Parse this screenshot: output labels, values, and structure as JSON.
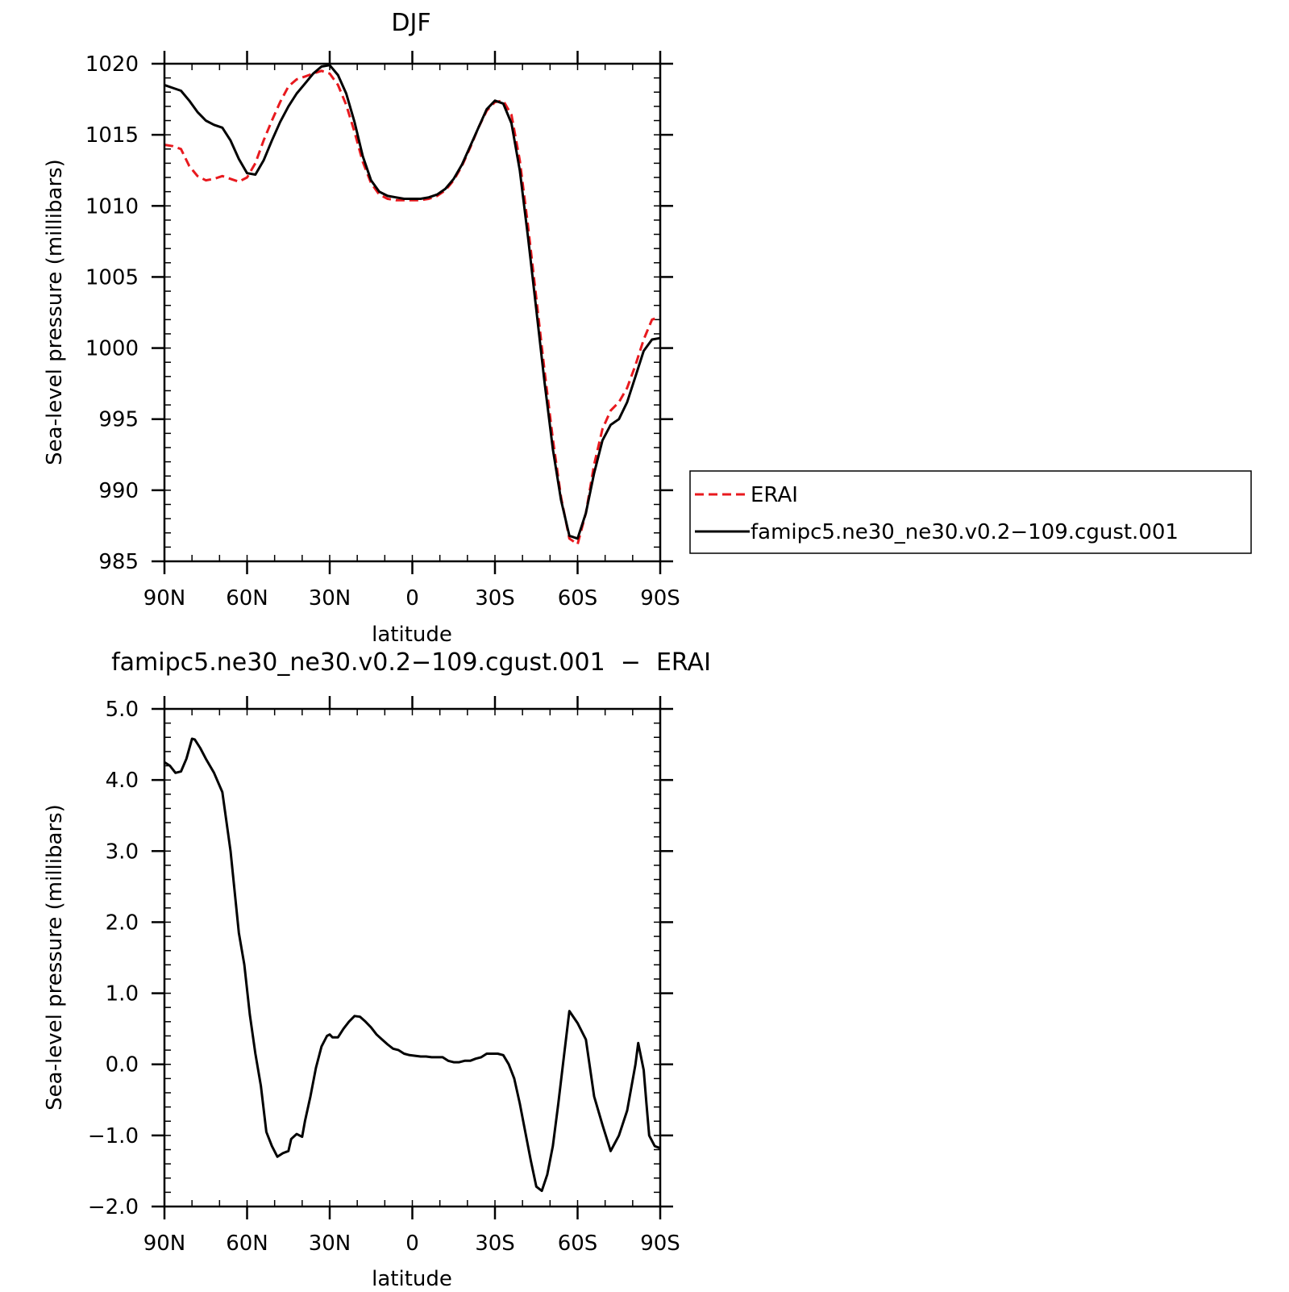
{
  "chart_data": [
    {
      "type": "line",
      "title": "DJF",
      "xlabel": "latitude",
      "ylabel": "Sea-level pressure (millibars)",
      "xlim": [
        90,
        -90
      ],
      "ylim": [
        985,
        1020
      ],
      "xticks": [
        {
          "value": 90,
          "label": "90N"
        },
        {
          "value": 60,
          "label": "60N"
        },
        {
          "value": 30,
          "label": "30N"
        },
        {
          "value": 0,
          "label": "0"
        },
        {
          "value": -30,
          "label": "30S"
        },
        {
          "value": -60,
          "label": "60S"
        },
        {
          "value": -90,
          "label": "90S"
        }
      ],
      "yticks": [
        {
          "value": 1020,
          "label": "1020"
        },
        {
          "value": 1015,
          "label": "1015"
        },
        {
          "value": 1010,
          "label": "1010"
        },
        {
          "value": 1005,
          "label": "1005"
        },
        {
          "value": 1000,
          "label": "1000"
        },
        {
          "value": 995,
          "label": "995"
        },
        {
          "value": 990,
          "label": "990"
        },
        {
          "value": 985,
          "label": "985"
        }
      ],
      "legend": "right",
      "series": [
        {
          "name": "ERAI",
          "color": "#e8191e",
          "dash": true,
          "x": [
            90,
            87,
            84,
            81,
            78,
            75,
            72,
            69,
            66,
            63,
            60,
            57,
            54,
            51,
            48,
            45,
            42,
            39,
            36,
            33,
            30,
            27,
            24,
            21,
            18,
            15,
            12,
            9,
            6,
            3,
            0,
            -3,
            -6,
            -9,
            -12,
            -15,
            -18,
            -21,
            -24,
            -27,
            -30,
            -33,
            -36,
            -39,
            -42,
            -45,
            -48,
            -51,
            -54,
            -57,
            -60,
            -63,
            -66,
            -69,
            -72,
            -75,
            -78,
            -81,
            -84,
            -87,
            -90
          ],
          "y": [
            1014.3,
            1014.2,
            1014.0,
            1012.8,
            1012.1,
            1011.8,
            1011.9,
            1012.1,
            1011.9,
            1011.7,
            1012.0,
            1013.0,
            1014.6,
            1016.0,
            1017.3,
            1018.4,
            1018.9,
            1019.1,
            1019.3,
            1019.5,
            1019.3,
            1018.5,
            1017.1,
            1015.2,
            1013.1,
            1011.6,
            1010.8,
            1010.5,
            1010.4,
            1010.4,
            1010.4,
            1010.4,
            1010.5,
            1010.7,
            1011.1,
            1011.8,
            1012.8,
            1014.1,
            1015.5,
            1016.7,
            1017.3,
            1017.4,
            1016.4,
            1013.2,
            1008.6,
            1003.5,
            998.4,
            993.6,
            989.5,
            986.6,
            986.2,
            988.4,
            991.8,
            994.3,
            995.6,
            996.2,
            997.2,
            998.8,
            1000.6,
            1002.0,
            1002.2
          ]
        },
        {
          "name": "famipc5.ne30_ne30.v0.2−109.cgust.001",
          "color": "#000000",
          "dash": false,
          "x": [
            90,
            87,
            84,
            81,
            78,
            75,
            72,
            69,
            66,
            63,
            60,
            57,
            54,
            51,
            48,
            45,
            42,
            39,
            36,
            33,
            30,
            27,
            24,
            21,
            18,
            15,
            12,
            9,
            6,
            3,
            0,
            -3,
            -6,
            -9,
            -12,
            -15,
            -18,
            -21,
            -24,
            -27,
            -30,
            -33,
            -36,
            -39,
            -42,
            -45,
            -48,
            -51,
            -54,
            -57,
            -60,
            -63,
            -66,
            -69,
            -72,
            -75,
            -78,
            -81,
            -84,
            -87,
            -90
          ],
          "y": [
            1018.5,
            1018.3,
            1018.1,
            1017.4,
            1016.6,
            1016.0,
            1015.7,
            1015.5,
            1014.6,
            1013.3,
            1012.3,
            1012.2,
            1013.2,
            1014.6,
            1015.9,
            1017.0,
            1017.9,
            1018.6,
            1019.3,
            1019.8,
            1019.9,
            1019.2,
            1017.9,
            1015.9,
            1013.5,
            1011.8,
            1011.0,
            1010.7,
            1010.6,
            1010.5,
            1010.5,
            1010.5,
            1010.6,
            1010.8,
            1011.2,
            1011.9,
            1012.9,
            1014.2,
            1015.5,
            1016.8,
            1017.4,
            1017.2,
            1015.8,
            1012.5,
            1007.8,
            1002.7,
            997.6,
            992.9,
            989.3,
            986.8,
            986.6,
            988.4,
            991.2,
            993.5,
            994.6,
            995.0,
            996.2,
            998.0,
            999.8,
            1000.6,
            1000.7
          ]
        }
      ]
    },
    {
      "type": "line",
      "title": "famipc5.ne30_ne30.v0.2−109.cgust.001  −  ERAI",
      "xlabel": "latitude",
      "ylabel": "Sea-level pressure (millibars)",
      "xlim": [
        90,
        -90
      ],
      "ylim": [
        -2.0,
        5.0
      ],
      "xticks": [
        {
          "value": 90,
          "label": "90N"
        },
        {
          "value": 60,
          "label": "60N"
        },
        {
          "value": 30,
          "label": "30N"
        },
        {
          "value": 0,
          "label": "0"
        },
        {
          "value": -30,
          "label": "30S"
        },
        {
          "value": -60,
          "label": "60S"
        },
        {
          "value": -90,
          "label": "90S"
        }
      ],
      "yticks": [
        {
          "value": 5.0,
          "label": "5.0"
        },
        {
          "value": 4.0,
          "label": "4.0"
        },
        {
          "value": 3.0,
          "label": "3.0"
        },
        {
          "value": 2.0,
          "label": "2.0"
        },
        {
          "value": 1.0,
          "label": "1.0"
        },
        {
          "value": 0.0,
          "label": "0.0"
        },
        {
          "value": -1.0,
          "label": "−1.0"
        },
        {
          "value": -2.0,
          "label": "−2.0"
        }
      ],
      "series": [
        {
          "color": "#000000",
          "dash": false,
          "x": [
            90,
            88,
            86,
            84,
            82,
            80,
            79,
            77,
            75,
            72,
            69,
            66,
            63,
            61,
            59,
            57,
            55,
            53,
            51,
            49,
            47,
            45,
            44,
            42,
            40,
            39,
            37,
            35,
            33,
            31,
            30,
            29,
            27,
            25,
            23,
            21,
            19,
            17,
            15,
            13,
            11,
            9,
            7,
            5,
            3,
            1,
            -1,
            -3,
            -5,
            -7,
            -9,
            -11,
            -13,
            -15,
            -17,
            -19,
            -21,
            -23,
            -25,
            -27,
            -29,
            -31,
            -33,
            -35,
            -37,
            -39,
            -41,
            -43,
            -45,
            -47,
            -49,
            -51,
            -53,
            -55,
            -57,
            -60,
            -63,
            -66,
            -69,
            -72,
            -75,
            -78,
            -81,
            -82,
            -84,
            -85,
            -86,
            -88,
            -90
          ],
          "y": [
            4.25,
            4.2,
            4.1,
            4.12,
            4.3,
            4.58,
            4.57,
            4.45,
            4.3,
            4.1,
            3.83,
            3.0,
            1.85,
            1.4,
            0.7,
            0.15,
            -0.3,
            -0.95,
            -1.15,
            -1.3,
            -1.25,
            -1.22,
            -1.05,
            -0.98,
            -1.02,
            -0.8,
            -0.45,
            -0.05,
            0.25,
            0.4,
            0.42,
            0.38,
            0.38,
            0.5,
            0.6,
            0.68,
            0.67,
            0.6,
            0.52,
            0.42,
            0.35,
            0.28,
            0.22,
            0.2,
            0.15,
            0.13,
            0.12,
            0.11,
            0.11,
            0.1,
            0.1,
            0.1,
            0.05,
            0.03,
            0.03,
            0.05,
            0.05,
            0.08,
            0.1,
            0.15,
            0.15,
            0.15,
            0.13,
            0.0,
            -0.2,
            -0.55,
            -0.95,
            -1.35,
            -1.72,
            -1.78,
            -1.55,
            -1.15,
            -0.55,
            0.1,
            0.75,
            0.58,
            0.35,
            -0.45,
            -0.85,
            -1.22,
            -1.0,
            -0.65,
            0.0,
            0.3,
            -0.08,
            -0.55,
            -1.0,
            -1.15,
            -1.18
          ]
        }
      ]
    }
  ]
}
